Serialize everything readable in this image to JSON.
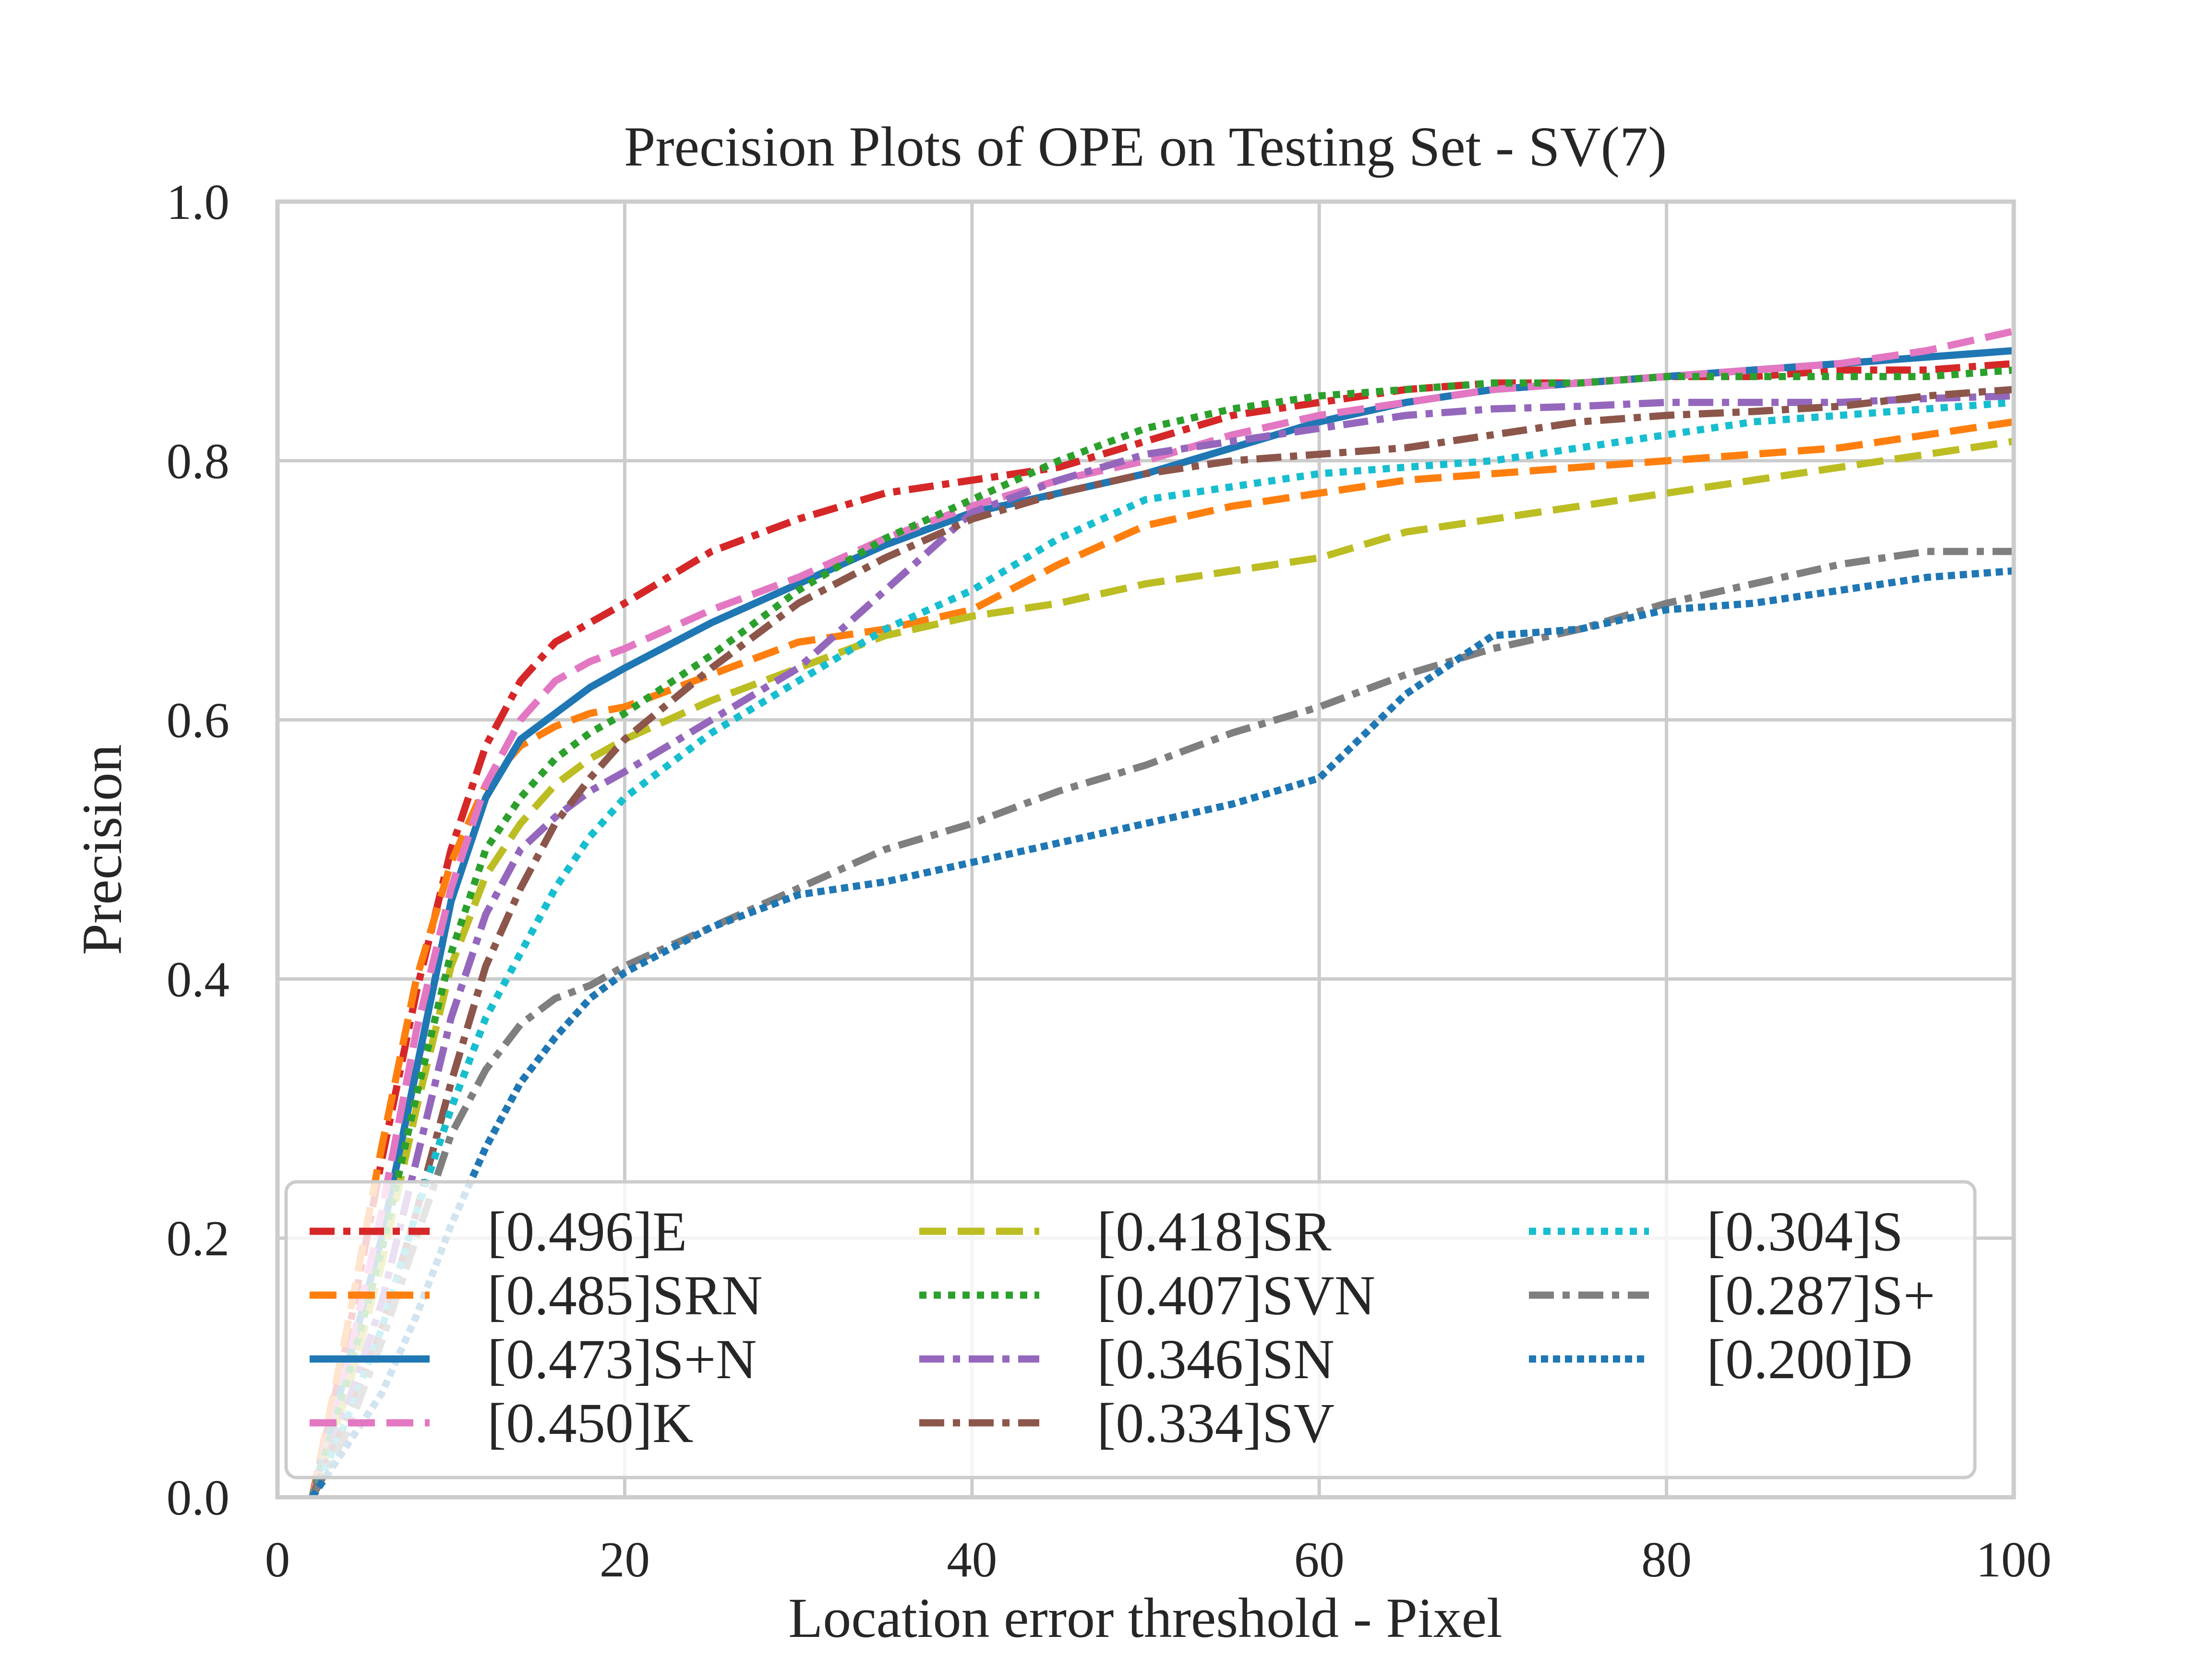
{
  "chart_data": {
    "type": "line",
    "title": "Precision Plots of OPE on Testing Set - SV(7)",
    "xlabel": "Location error threshold - Pixel",
    "ylabel": "Precision",
    "xlim": [
      0,
      100
    ],
    "ylim": [
      0,
      1
    ],
    "grid": true,
    "legend_position": "lower center",
    "legend_columns": 3,
    "x_ticks": [
      {
        "value": 0,
        "label": "0"
      },
      {
        "value": 20,
        "label": "20"
      },
      {
        "value": 40,
        "label": "40"
      },
      {
        "value": 60,
        "label": "60"
      },
      {
        "value": 80,
        "label": "80"
      },
      {
        "value": 100,
        "label": "100"
      }
    ],
    "y_ticks": [
      {
        "value": 0,
        "label": "0.0"
      },
      {
        "value": 0.2,
        "label": "0.2"
      },
      {
        "value": 0.4,
        "label": "0.4"
      },
      {
        "value": 0.6,
        "label": "0.6"
      },
      {
        "value": 0.8,
        "label": "0.8"
      },
      {
        "value": 1.0,
        "label": "1.0"
      }
    ],
    "x": [
      2,
      4,
      6,
      8,
      10,
      12,
      14,
      16,
      18,
      20,
      25,
      30,
      35,
      40,
      45,
      50,
      55,
      60,
      65,
      70,
      75,
      80,
      85,
      90,
      95,
      100
    ],
    "series": [
      {
        "name": "[0.496]E",
        "color": "#d62728",
        "dash": "dashdot",
        "values": [
          0.0,
          0.12,
          0.26,
          0.39,
          0.5,
          0.58,
          0.63,
          0.66,
          0.675,
          0.69,
          0.73,
          0.755,
          0.775,
          0.785,
          0.795,
          0.815,
          0.835,
          0.845,
          0.855,
          0.86,
          0.86,
          0.865,
          0.865,
          0.87,
          0.87,
          0.875
        ]
      },
      {
        "name": "[0.485]SRN",
        "color": "#ff7f0e",
        "dash": "dashed",
        "values": [
          0.0,
          0.13,
          0.27,
          0.4,
          0.49,
          0.55,
          0.58,
          0.595,
          0.605,
          0.61,
          0.635,
          0.66,
          0.67,
          0.685,
          0.72,
          0.75,
          0.765,
          0.775,
          0.785,
          0.79,
          0.795,
          0.8,
          0.805,
          0.81,
          0.82,
          0.83
        ]
      },
      {
        "name": "[0.473]S+N",
        "color": "#1f77b4",
        "dash": "solid",
        "values": [
          0.0,
          0.1,
          0.2,
          0.33,
          0.46,
          0.54,
          0.585,
          0.605,
          0.625,
          0.64,
          0.675,
          0.705,
          0.735,
          0.76,
          0.775,
          0.79,
          0.81,
          0.83,
          0.845,
          0.855,
          0.86,
          0.865,
          0.87,
          0.875,
          0.88,
          0.885
        ]
      },
      {
        "name": "[0.450]K",
        "color": "#e377c2",
        "dash": "dashed",
        "values": [
          0.0,
          0.1,
          0.22,
          0.36,
          0.47,
          0.55,
          0.6,
          0.63,
          0.645,
          0.655,
          0.685,
          0.71,
          0.74,
          0.765,
          0.785,
          0.8,
          0.82,
          0.835,
          0.845,
          0.855,
          0.86,
          0.865,
          0.87,
          0.875,
          0.885,
          0.9
        ]
      },
      {
        "name": "[0.418]SR",
        "color": "#bcbd22",
        "dash": "dashed",
        "values": [
          0.0,
          0.08,
          0.18,
          0.3,
          0.41,
          0.48,
          0.52,
          0.55,
          0.57,
          0.585,
          0.615,
          0.64,
          0.665,
          0.68,
          0.69,
          0.705,
          0.715,
          0.725,
          0.745,
          0.755,
          0.765,
          0.775,
          0.785,
          0.795,
          0.805,
          0.815
        ]
      },
      {
        "name": "[0.407]SVN",
        "color": "#2ca02c",
        "dash": "dotted",
        "values": [
          0.0,
          0.09,
          0.19,
          0.31,
          0.42,
          0.5,
          0.54,
          0.57,
          0.59,
          0.605,
          0.65,
          0.7,
          0.74,
          0.77,
          0.8,
          0.825,
          0.84,
          0.85,
          0.855,
          0.86,
          0.86,
          0.865,
          0.865,
          0.865,
          0.865,
          0.87
        ]
      },
      {
        "name": "[0.346]SN",
        "color": "#9467bd",
        "dash": "dashdot",
        "values": [
          0.0,
          0.07,
          0.15,
          0.26,
          0.37,
          0.45,
          0.5,
          0.525,
          0.545,
          0.56,
          0.6,
          0.64,
          0.7,
          0.76,
          0.785,
          0.805,
          0.815,
          0.825,
          0.835,
          0.84,
          0.842,
          0.845,
          0.845,
          0.845,
          0.848,
          0.85
        ]
      },
      {
        "name": "[0.334]SV",
        "color": "#8c564b",
        "dash": "dashdot",
        "values": [
          0.0,
          0.06,
          0.13,
          0.22,
          0.32,
          0.41,
          0.47,
          0.52,
          0.555,
          0.585,
          0.64,
          0.69,
          0.725,
          0.755,
          0.775,
          0.79,
          0.8,
          0.805,
          0.81,
          0.82,
          0.83,
          0.835,
          0.838,
          0.842,
          0.85,
          0.855
        ]
      },
      {
        "name": "[0.304]S",
        "color": "#17becf",
        "dash": "dotted",
        "values": [
          0.0,
          0.06,
          0.13,
          0.22,
          0.3,
          0.37,
          0.42,
          0.47,
          0.51,
          0.54,
          0.59,
          0.63,
          0.67,
          0.7,
          0.74,
          0.77,
          0.78,
          0.79,
          0.795,
          0.8,
          0.81,
          0.82,
          0.83,
          0.835,
          0.84,
          0.845
        ]
      },
      {
        "name": "[0.287]S+",
        "color": "#7f7f7f",
        "dash": "dashdot",
        "values": [
          0.0,
          0.05,
          0.12,
          0.2,
          0.28,
          0.33,
          0.365,
          0.385,
          0.395,
          0.41,
          0.44,
          0.47,
          0.5,
          0.52,
          0.545,
          0.565,
          0.59,
          0.61,
          0.635,
          0.655,
          0.67,
          0.69,
          0.705,
          0.72,
          0.73,
          0.73
        ]
      },
      {
        "name": "[0.200]D",
        "color": "#1f77b4",
        "dash": "dotted-dense",
        "values": [
          0.0,
          0.04,
          0.08,
          0.14,
          0.21,
          0.27,
          0.32,
          0.355,
          0.385,
          0.405,
          0.44,
          0.465,
          0.475,
          0.49,
          0.505,
          0.52,
          0.535,
          0.555,
          0.62,
          0.665,
          0.67,
          0.685,
          0.69,
          0.7,
          0.71,
          0.715
        ]
      }
    ]
  }
}
